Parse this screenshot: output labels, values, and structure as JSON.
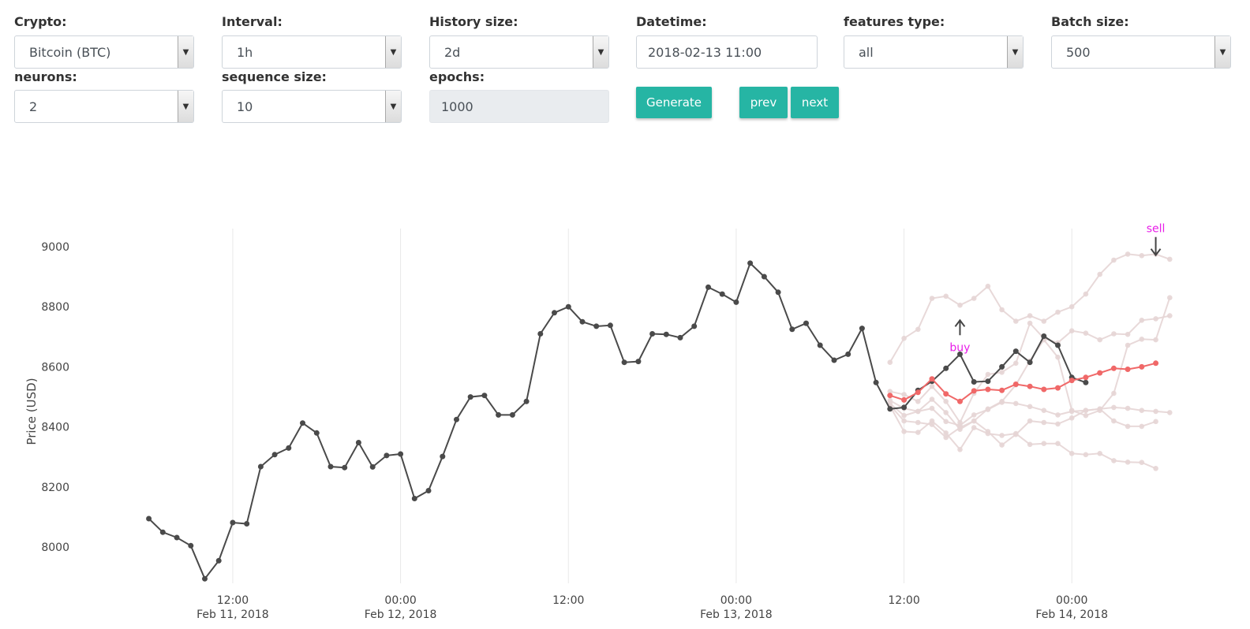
{
  "form": {
    "crypto": {
      "label": "Crypto:",
      "value": "Bitcoin (BTC)"
    },
    "interval": {
      "label": "Interval:",
      "value": "1h"
    },
    "history_size": {
      "label": "History size:",
      "value": "2d"
    },
    "datetime": {
      "label": "Datetime:",
      "value": "2018-02-13 11:00"
    },
    "features_type": {
      "label": "features type:",
      "value": "all"
    },
    "batch_size": {
      "label": "Batch size:",
      "value": "500"
    },
    "neurons": {
      "label": "neurons:",
      "value": "2"
    },
    "sequence_size": {
      "label": "sequence size:",
      "value": "10"
    },
    "epochs": {
      "label": "epochs:",
      "value": "1000"
    }
  },
  "buttons": {
    "generate": "Generate",
    "prev": "prev",
    "next": "next"
  },
  "colors": {
    "accent": "#26b5a4",
    "history_line": "#4a4a4a",
    "prediction_line": "#f06868",
    "alt_prediction_line": "#e5d5d5",
    "annotation": "#e81ee8"
  },
  "chart_data": {
    "type": "line",
    "ylabel": "Price (USD)",
    "xlabel": "",
    "ylim": [
      7880,
      9060
    ],
    "y_ticks": [
      8000,
      8200,
      8400,
      8600,
      8800,
      9000
    ],
    "x_ticks": [
      {
        "x": "2018-02-11 12:00",
        "label1": "12:00",
        "label2": "Feb 11, 2018"
      },
      {
        "x": "2018-02-12 00:00",
        "label1": "00:00",
        "label2": "Feb 12, 2018"
      },
      {
        "x": "2018-02-12 12:00",
        "label1": "12:00",
        "label2": ""
      },
      {
        "x": "2018-02-13 00:00",
        "label1": "00:00",
        "label2": "Feb 13, 2018"
      },
      {
        "x": "2018-02-13 12:00",
        "label1": "12:00",
        "label2": ""
      },
      {
        "x": "2018-02-14 00:00",
        "label1": "00:00",
        "label2": "Feb 14, 2018"
      }
    ],
    "xlim": [
      "2018-02-11 01:00",
      "2018-02-14 08:00"
    ],
    "grid": "vertical",
    "annotations": [
      {
        "text": "buy",
        "x": "2018-02-13 16:00",
        "y": 8700,
        "arrow": "up"
      },
      {
        "text": "sell",
        "x": "2018-02-14 06:00",
        "y": 8990,
        "arrow": "down"
      }
    ],
    "series": [
      {
        "role": "history",
        "x_start": "2018-02-11 06:00",
        "values": [
          8095,
          8050,
          8032,
          8005,
          7895,
          7955,
          8082,
          8078,
          8268,
          8308,
          8330,
          8413,
          8380,
          8268,
          8265,
          8348,
          8267,
          8305,
          8310,
          8162,
          8188,
          8302,
          8425,
          8500,
          8505,
          8440,
          8440,
          8485,
          8710,
          8780,
          8800,
          8750,
          8735,
          8738,
          8615,
          8618,
          8710,
          8708,
          8697,
          8735,
          8865,
          8842,
          8815,
          8945,
          8900,
          8848,
          8725,
          8745,
          8672,
          8622,
          8642,
          8728,
          8548,
          8460,
          8465,
          8522,
          8552,
          8595,
          8642,
          8550,
          8552,
          8600,
          8652,
          8615,
          8702,
          8672,
          8565,
          8548
        ]
      },
      {
        "role": "prediction",
        "x_start": "2018-02-13 11:00",
        "values": [
          8505,
          8490,
          8515,
          8560,
          8510,
          8485,
          8520,
          8525,
          8522,
          8542,
          8535,
          8525,
          8530,
          8555,
          8565,
          8580,
          8595,
          8592,
          8600,
          8612
        ]
      },
      {
        "role": "alt",
        "x_start": "2018-02-13 11:00",
        "values": [
          8615,
          8695,
          8725,
          8828,
          8835,
          8805,
          8828,
          8868,
          8790,
          8752,
          8770,
          8752,
          8782,
          8800,
          8842,
          8908,
          8955,
          8975,
          8970,
          8975,
          8958
        ]
      },
      {
        "role": "alt",
        "x_start": "2018-02-13 11:00",
        "values": [
          8518,
          8508,
          8485,
          8535,
          8485,
          8415,
          8512,
          8575,
          8582,
          8612,
          8745,
          8695,
          8680,
          8720,
          8712,
          8690,
          8710,
          8708,
          8755,
          8760,
          8770
        ]
      },
      {
        "role": "alt",
        "x_start": "2018-02-13 11:00",
        "values": [
          8488,
          8462,
          8452,
          8492,
          8448,
          8392,
          8420,
          8460,
          8485,
          8540,
          8620,
          8690,
          8632,
          8455,
          8438,
          8455,
          8512,
          8672,
          8692,
          8690,
          8830
        ]
      },
      {
        "role": "alt",
        "x_start": "2018-02-13 11:00",
        "values": [
          8478,
          8438,
          8452,
          8462,
          8418,
          8405,
          8440,
          8458,
          8482,
          8478,
          8468,
          8455,
          8440,
          8452,
          8455,
          8460,
          8465,
          8462,
          8455,
          8452,
          8448
        ]
      },
      {
        "role": "alt",
        "x_start": "2018-02-13 11:00",
        "values": [
          8470,
          8385,
          8382,
          8420,
          8380,
          8325,
          8398,
          8378,
          8372,
          8378,
          8342,
          8345,
          8345,
          8312,
          8308,
          8312,
          8288,
          8283,
          8282,
          8262
        ]
      },
      {
        "role": "alt",
        "x_start": "2018-02-13 11:00",
        "values": [
          8472,
          8420,
          8415,
          8408,
          8365,
          8398,
          8420,
          8385,
          8340,
          8375,
          8420,
          8415,
          8410,
          8430,
          8455,
          8460,
          8420,
          8402,
          8402,
          8418
        ]
      }
    ]
  }
}
